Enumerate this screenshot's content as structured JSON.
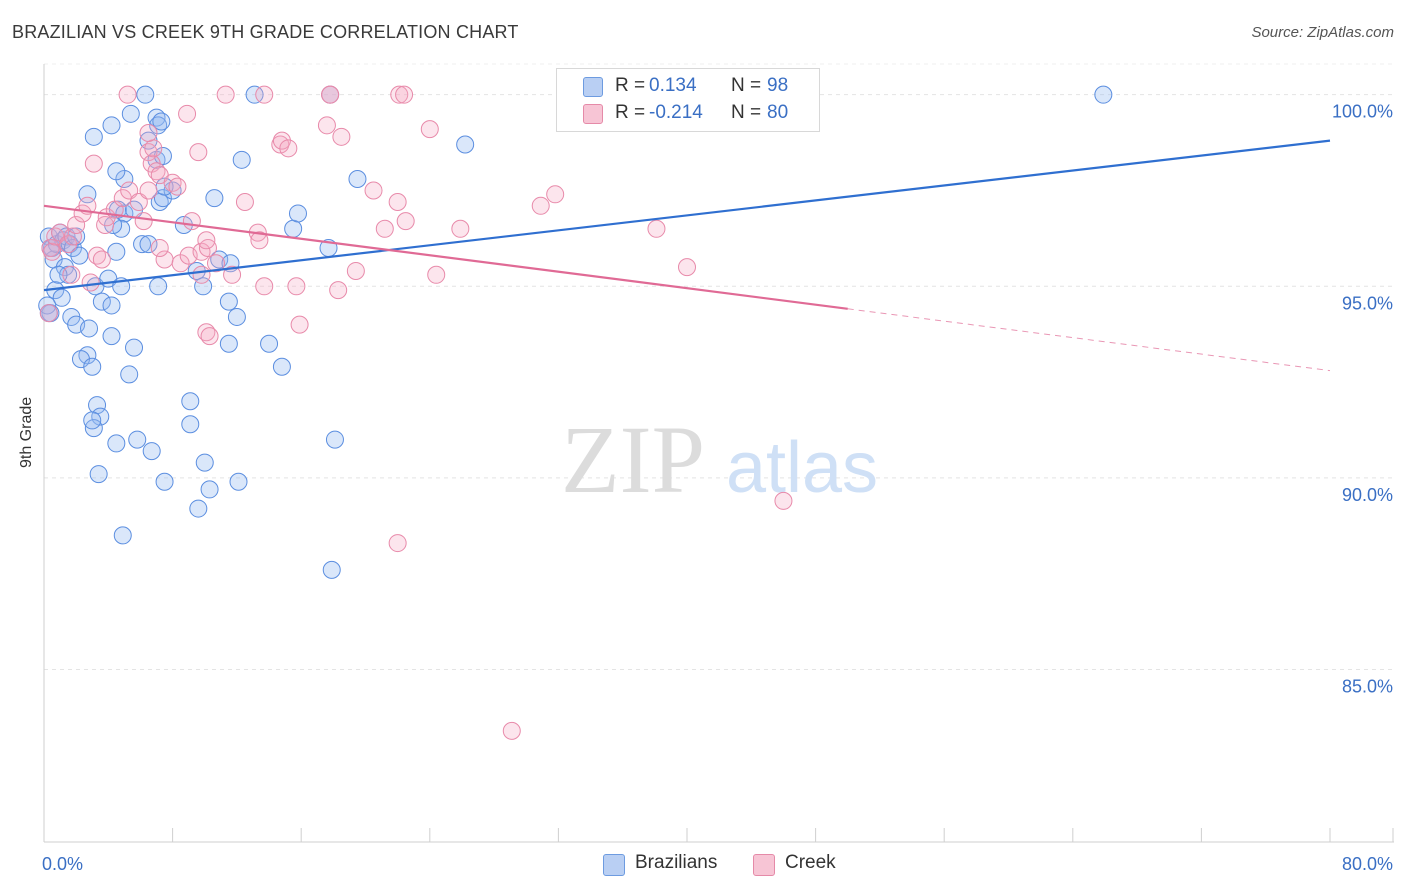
{
  "header": {
    "title": "BRAZILIAN VS CREEK 9TH GRADE CORRELATION CHART",
    "source": "Source: ZipAtlas.com"
  },
  "watermark": {
    "zip": "ZIP",
    "atlas": "atlas"
  },
  "legend": {
    "r_label": "R =",
    "n_label": "N =",
    "rows": [
      {
        "r": "0.134",
        "n": "98",
        "color": "#b9cff3",
        "border": "#6d9be0"
      },
      {
        "r": "-0.214",
        "n": "80",
        "color": "#f7c5d5",
        "border": "#e58aa8"
      }
    ]
  },
  "bottom_legend": [
    {
      "label": "Brazilians",
      "color": "#b9cff3",
      "border": "#6d9be0"
    },
    {
      "label": "Creek",
      "color": "#f7c5d5",
      "border": "#e58aa8"
    }
  ],
  "colors": {
    "blue_fill": "rgba(150,185,240,0.35)",
    "blue_stroke": "#5b8ee0",
    "blue_line": "#2f6fd0",
    "pink_fill": "rgba(245,170,195,0.30)",
    "pink_stroke": "#e88aaa",
    "pink_line": "#e06a95",
    "grid": "#e4e4e4",
    "axis_text": "#3a6fc4"
  },
  "chart_data": {
    "type": "scatter",
    "title": "BRAZILIAN VS CREEK 9TH GRADE CORRELATION CHART",
    "xlabel": "",
    "ylabel": "9th Grade",
    "xlim": [
      0,
      80
    ],
    "ylim": [
      80.5,
      100.8
    ],
    "x_tick_labels": [
      "0.0%",
      "80.0%"
    ],
    "y_ticks": [
      85,
      90,
      95,
      100
    ],
    "y_tick_labels": [
      "85.0%",
      "90.0%",
      "95.0%",
      "100.0%"
    ],
    "grid": true,
    "legend_position": "top-center",
    "series": [
      {
        "name": "Brazilians",
        "r": 0.134,
        "n": 98,
        "trend": {
          "x0": 0,
          "y0": 94.9,
          "x1": 80,
          "y1": 98.8,
          "solid_until": 80
        },
        "points": [
          [
            0.3,
            96.3
          ],
          [
            0.5,
            96.0
          ],
          [
            0.6,
            95.7
          ],
          [
            0.8,
            96.1
          ],
          [
            1.0,
            96.4
          ],
          [
            1.2,
            96.2
          ],
          [
            1.4,
            96.3
          ],
          [
            1.6,
            96.1
          ],
          [
            1.8,
            96.0
          ],
          [
            2.0,
            96.3
          ],
          [
            0.4,
            94.3
          ],
          [
            0.7,
            94.9
          ],
          [
            1.1,
            94.7
          ],
          [
            1.3,
            95.5
          ],
          [
            1.5,
            95.3
          ],
          [
            2.2,
            95.8
          ],
          [
            0.9,
            95.3
          ],
          [
            0.2,
            94.5
          ],
          [
            0.3,
            94.3
          ],
          [
            1.7,
            94.2
          ],
          [
            2.0,
            94.0
          ],
          [
            2.8,
            93.9
          ],
          [
            3.2,
            95.0
          ],
          [
            3.6,
            94.6
          ],
          [
            4.0,
            95.2
          ],
          [
            4.2,
            94.5
          ],
          [
            4.8,
            95.0
          ],
          [
            4.2,
            93.7
          ],
          [
            2.7,
            93.2
          ],
          [
            2.3,
            93.1
          ],
          [
            3.0,
            92.9
          ],
          [
            5.3,
            92.7
          ],
          [
            5.6,
            93.4
          ],
          [
            3.3,
            91.9
          ],
          [
            3.5,
            91.6
          ],
          [
            3.1,
            91.3
          ],
          [
            3.0,
            91.5
          ],
          [
            4.5,
            90.9
          ],
          [
            5.8,
            91.0
          ],
          [
            6.7,
            90.7
          ],
          [
            3.4,
            90.1
          ],
          [
            7.5,
            89.9
          ],
          [
            4.9,
            88.5
          ],
          [
            9.6,
            89.2
          ],
          [
            10.3,
            89.7
          ],
          [
            10.0,
            90.4
          ],
          [
            12.1,
            89.9
          ],
          [
            9.1,
            92.0
          ],
          [
            9.1,
            91.4
          ],
          [
            11.5,
            93.5
          ],
          [
            4.5,
            95.9
          ],
          [
            5.0,
            97.8
          ],
          [
            4.5,
            98.0
          ],
          [
            4.6,
            97.0
          ],
          [
            5.0,
            96.9
          ],
          [
            4.8,
            96.5
          ],
          [
            6.1,
            96.1
          ],
          [
            6.5,
            96.1
          ],
          [
            7.2,
            97.2
          ],
          [
            7.4,
            97.3
          ],
          [
            8.0,
            97.5
          ],
          [
            7.5,
            97.6
          ],
          [
            8.7,
            96.6
          ],
          [
            7.0,
            98.3
          ],
          [
            7.4,
            98.4
          ],
          [
            6.5,
            98.8
          ],
          [
            7.0,
            99.4
          ],
          [
            7.1,
            99.2
          ],
          [
            7.3,
            99.3
          ],
          [
            5.4,
            99.5
          ],
          [
            4.2,
            99.2
          ],
          [
            3.1,
            98.9
          ],
          [
            6.3,
            100.0
          ],
          [
            13.1,
            100.0
          ],
          [
            17.8,
            100.0
          ],
          [
            12.3,
            98.3
          ],
          [
            10.6,
            97.3
          ],
          [
            10.9,
            95.7
          ],
          [
            9.5,
            95.4
          ],
          [
            11.6,
            95.6
          ],
          [
            9.9,
            95.0
          ],
          [
            7.1,
            95.0
          ],
          [
            11.5,
            94.6
          ],
          [
            12.0,
            94.2
          ],
          [
            14.8,
            92.9
          ],
          [
            14.0,
            93.5
          ],
          [
            15.5,
            96.5
          ],
          [
            15.8,
            96.9
          ],
          [
            17.7,
            96.0
          ],
          [
            19.5,
            97.8
          ],
          [
            18.1,
            91.0
          ],
          [
            17.9,
            87.6
          ],
          [
            26.2,
            98.7
          ],
          [
            65.9,
            100.0
          ],
          [
            2.7,
            97.4
          ],
          [
            4.3,
            96.6
          ],
          [
            5.6,
            97.0
          ],
          [
            0.4,
            96.0
          ]
        ]
      },
      {
        "name": "Creek",
        "r": -0.214,
        "n": 80,
        "trend": {
          "x0": 0,
          "y0": 97.1,
          "x1": 80,
          "y1": 92.8,
          "solid_until": 50
        },
        "points": [
          [
            0.4,
            96.0
          ],
          [
            0.5,
            95.9
          ],
          [
            0.7,
            96.3
          ],
          [
            1.0,
            96.4
          ],
          [
            1.5,
            96.1
          ],
          [
            1.8,
            96.3
          ],
          [
            2.0,
            96.6
          ],
          [
            2.4,
            96.9
          ],
          [
            2.7,
            97.1
          ],
          [
            1.7,
            95.3
          ],
          [
            0.3,
            94.3
          ],
          [
            2.9,
            95.1
          ],
          [
            3.3,
            95.8
          ],
          [
            3.6,
            95.7
          ],
          [
            3.8,
            96.6
          ],
          [
            3.9,
            96.8
          ],
          [
            4.4,
            97.0
          ],
          [
            4.9,
            97.3
          ],
          [
            5.3,
            97.5
          ],
          [
            5.9,
            97.2
          ],
          [
            6.2,
            96.7
          ],
          [
            6.5,
            97.5
          ],
          [
            6.5,
            98.5
          ],
          [
            6.7,
            98.2
          ],
          [
            6.8,
            98.6
          ],
          [
            7.0,
            98.0
          ],
          [
            7.2,
            97.9
          ],
          [
            8.0,
            97.7
          ],
          [
            8.3,
            97.6
          ],
          [
            7.5,
            95.7
          ],
          [
            7.2,
            96.0
          ],
          [
            8.5,
            95.6
          ],
          [
            9.0,
            95.8
          ],
          [
            9.8,
            95.3
          ],
          [
            9.8,
            95.9
          ],
          [
            10.2,
            96.0
          ],
          [
            10.1,
            96.2
          ],
          [
            10.7,
            95.6
          ],
          [
            11.7,
            95.3
          ],
          [
            9.2,
            96.7
          ],
          [
            10.1,
            93.8
          ],
          [
            10.3,
            93.7
          ],
          [
            8.9,
            99.5
          ],
          [
            11.3,
            100.0
          ],
          [
            13.7,
            100.0
          ],
          [
            5.2,
            100.0
          ],
          [
            6.5,
            99.0
          ],
          [
            9.6,
            98.5
          ],
          [
            12.5,
            97.2
          ],
          [
            13.3,
            96.4
          ],
          [
            13.4,
            96.2
          ],
          [
            13.7,
            95.0
          ],
          [
            14.7,
            98.7
          ],
          [
            14.8,
            98.8
          ],
          [
            15.2,
            98.6
          ],
          [
            15.7,
            95.0
          ],
          [
            15.9,
            94.0
          ],
          [
            17.8,
            100.0
          ],
          [
            17.8,
            100.0
          ],
          [
            18.3,
            94.9
          ],
          [
            18.5,
            98.9
          ],
          [
            19.4,
            95.4
          ],
          [
            20.5,
            97.5
          ],
          [
            21.2,
            96.5
          ],
          [
            22.1,
            100.0
          ],
          [
            22.4,
            100.0
          ],
          [
            22.0,
            97.2
          ],
          [
            22.5,
            96.7
          ],
          [
            24.0,
            99.1
          ],
          [
            24.4,
            95.3
          ],
          [
            25.9,
            96.5
          ],
          [
            30.9,
            97.1
          ],
          [
            31.8,
            97.4
          ],
          [
            38.1,
            96.5
          ],
          [
            40.0,
            95.5
          ],
          [
            46.0,
            89.4
          ],
          [
            22.0,
            88.3
          ],
          [
            29.1,
            83.4
          ],
          [
            3.1,
            98.2
          ],
          [
            17.6,
            99.2
          ]
        ]
      }
    ]
  }
}
